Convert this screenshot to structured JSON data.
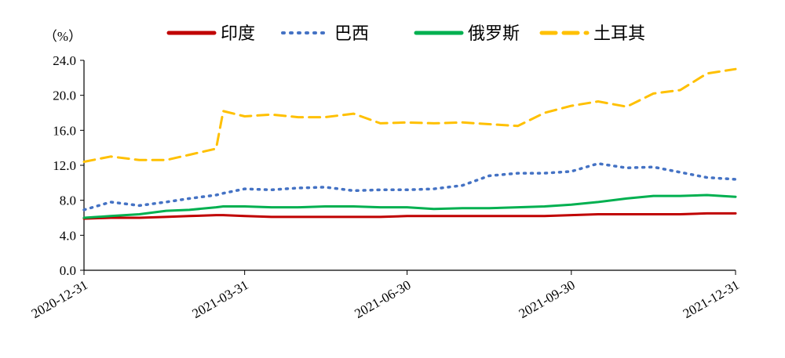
{
  "chart_data": {
    "type": "line",
    "title": "",
    "ylabel": "（%）",
    "xlabel": "",
    "ylim": [
      0,
      24
    ],
    "yticks": [
      "0.0",
      "4.0",
      "8.0",
      "12.0",
      "16.0",
      "20.0",
      "24.0"
    ],
    "x": [
      "2020-12-31",
      "2021-01-15",
      "2021-01-31",
      "2021-02-15",
      "2021-02-28",
      "2021-03-15",
      "2021-03-19",
      "2021-03-31",
      "2021-04-15",
      "2021-04-30",
      "2021-05-15",
      "2021-05-31",
      "2021-06-15",
      "2021-06-30",
      "2021-07-15",
      "2021-07-31",
      "2021-08-15",
      "2021-08-31",
      "2021-09-15",
      "2021-09-30",
      "2021-10-15",
      "2021-10-31",
      "2021-11-15",
      "2021-11-30",
      "2021-12-15",
      "2021-12-31"
    ],
    "xticks": [
      "2020-12-31",
      "2021-03-31",
      "2021-06-30",
      "2021-09-30",
      "2021-12-31"
    ],
    "legend_position": "top",
    "grid": false,
    "series": [
      {
        "name": "印度",
        "color": "#c00000",
        "style": "solid",
        "values": [
          5.9,
          6.0,
          6.0,
          6.1,
          6.2,
          6.3,
          6.3,
          6.2,
          6.1,
          6.1,
          6.1,
          6.1,
          6.1,
          6.2,
          6.2,
          6.2,
          6.2,
          6.2,
          6.2,
          6.3,
          6.4,
          6.4,
          6.4,
          6.4,
          6.5,
          6.5
        ]
      },
      {
        "name": "巴西",
        "color": "#4472c4",
        "style": "dotted",
        "values": [
          6.9,
          7.8,
          7.4,
          7.8,
          8.2,
          8.6,
          8.8,
          9.3,
          9.2,
          9.4,
          9.5,
          9.1,
          9.2,
          9.2,
          9.3,
          9.7,
          10.8,
          11.1,
          11.1,
          11.3,
          12.2,
          11.7,
          11.8,
          11.2,
          10.6,
          10.4
        ]
      },
      {
        "name": "俄罗斯",
        "color": "#00b050",
        "style": "solid",
        "values": [
          6.0,
          6.2,
          6.4,
          6.8,
          6.9,
          7.2,
          7.3,
          7.3,
          7.2,
          7.2,
          7.3,
          7.3,
          7.2,
          7.2,
          7.0,
          7.1,
          7.1,
          7.2,
          7.3,
          7.5,
          7.8,
          8.2,
          8.5,
          8.5,
          8.6,
          8.4
        ]
      },
      {
        "name": "土耳其",
        "color": "#ffc000",
        "style": "dashed",
        "values": [
          12.4,
          13.0,
          12.6,
          12.6,
          13.2,
          13.9,
          18.2,
          17.6,
          17.8,
          17.5,
          17.5,
          17.9,
          16.8,
          16.9,
          16.8,
          16.9,
          16.7,
          16.5,
          18.0,
          18.8,
          19.3,
          18.7,
          20.2,
          20.6,
          22.5,
          23.0
        ]
      }
    ]
  }
}
